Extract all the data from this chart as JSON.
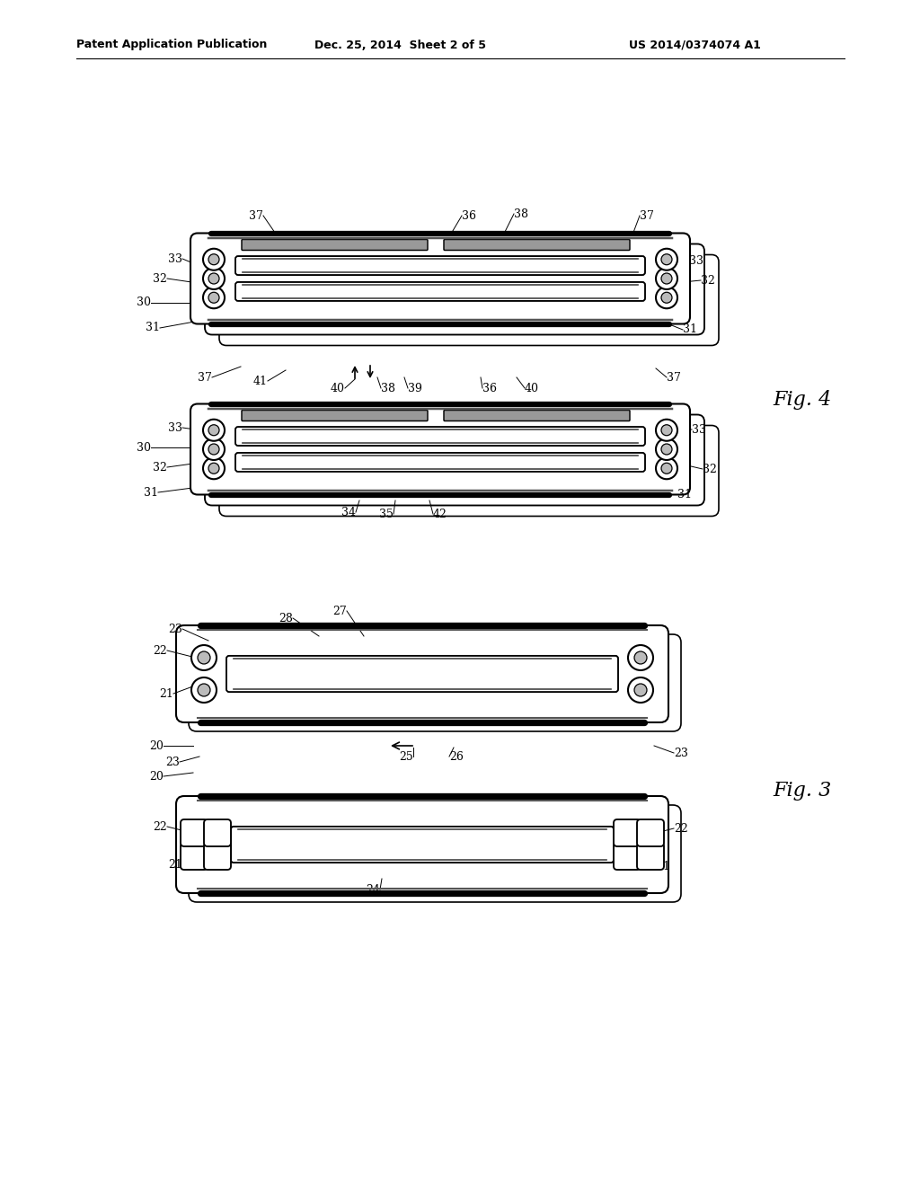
{
  "bg_color": "#ffffff",
  "line_color": "#000000",
  "header_text": "Patent Application Publication",
  "header_date": "Dec. 25, 2014  Sheet 2 of 5",
  "header_patent": "US 2014/0374074 A1",
  "fig4_label": "Fig. 4",
  "fig3_label": "Fig. 3",
  "page_width": 1.0,
  "page_height": 1.0
}
